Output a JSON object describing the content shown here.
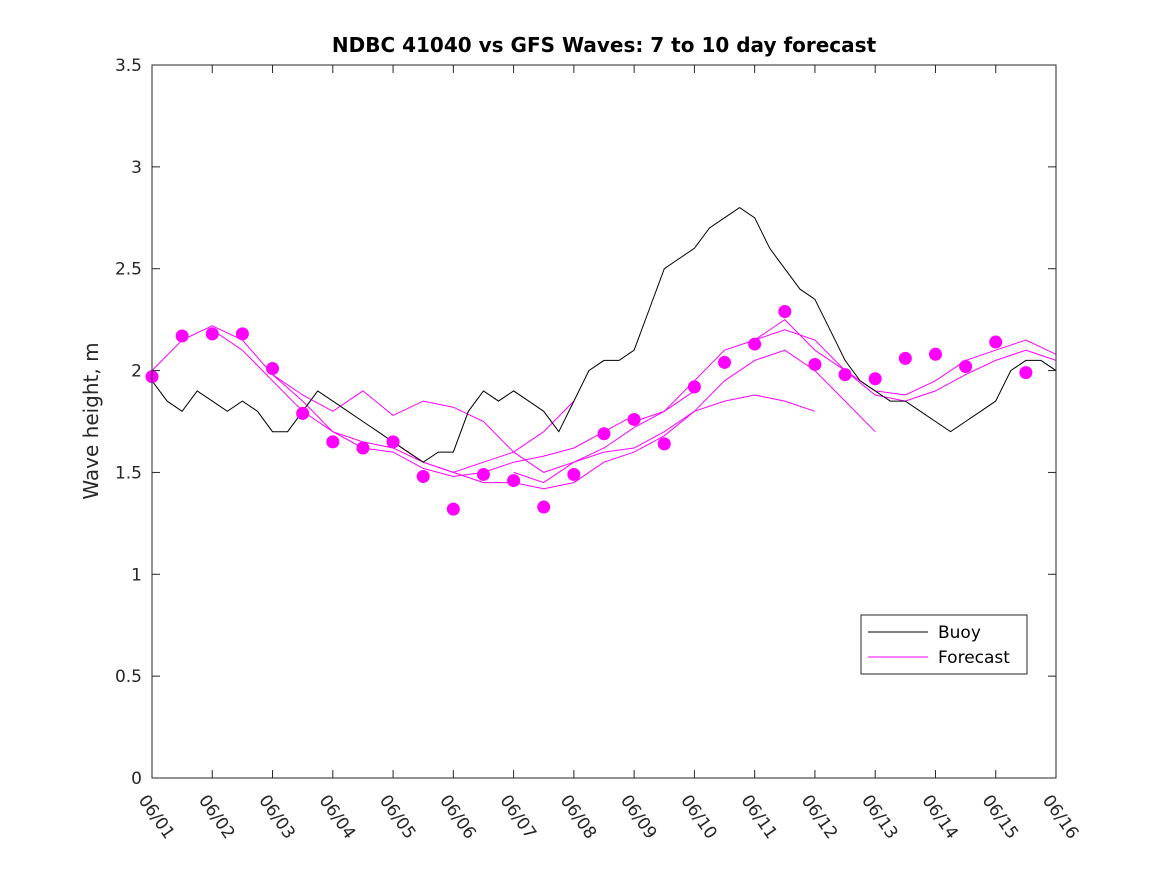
{
  "chart_data": {
    "type": "line",
    "title": "NDBC 41040 vs GFS Waves: 7 to 10 day forecast",
    "xlabel": "",
    "ylabel": "Wave height, m",
    "xlim": [
      "06/01",
      "06/16"
    ],
    "ylim": [
      0,
      3.5
    ],
    "x_ticks": [
      "06/01",
      "06/02",
      "06/03",
      "06/04",
      "06/05",
      "06/06",
      "06/07",
      "06/08",
      "06/09",
      "06/10",
      "06/11",
      "06/12",
      "06/13",
      "06/14",
      "06/15",
      "06/16"
    ],
    "y_ticks": [
      "0",
      "0.5",
      "1",
      "1.5",
      "2",
      "2.5",
      "3",
      "3.5"
    ],
    "grid": false,
    "legend": {
      "position": "bottom-right",
      "entries": [
        "Buoy",
        "Forecast"
      ]
    },
    "colors": {
      "buoy": "#000000",
      "forecast": "#ff00ff"
    },
    "series": [
      {
        "name": "Buoy",
        "x_day_of_june": [
          1.0,
          1.25,
          1.5,
          1.75,
          2.0,
          2.25,
          2.5,
          2.75,
          3.0,
          3.25,
          3.5,
          3.75,
          4.0,
          4.25,
          4.5,
          4.75,
          5.0,
          5.25,
          5.5,
          5.75,
          6.0,
          6.25,
          6.5,
          6.75,
          7.0,
          7.25,
          7.5,
          7.75,
          8.0,
          8.25,
          8.5,
          8.75,
          9.0,
          9.25,
          9.5,
          9.75,
          10.0,
          10.25,
          10.5,
          10.75,
          11.0,
          11.25,
          11.5,
          11.75,
          12.0,
          12.25,
          12.5,
          12.75,
          13.0,
          13.25,
          13.5,
          13.75,
          14.0,
          14.25,
          14.5,
          14.75,
          15.0,
          15.25,
          15.5,
          15.75,
          16.0
        ],
        "values": [
          1.95,
          1.85,
          1.8,
          1.9,
          1.85,
          1.8,
          1.85,
          1.8,
          1.7,
          1.7,
          1.8,
          1.9,
          1.85,
          1.8,
          1.75,
          1.7,
          1.65,
          1.6,
          1.55,
          1.6,
          1.6,
          1.8,
          1.9,
          1.85,
          1.9,
          1.85,
          1.8,
          1.7,
          1.85,
          2.0,
          2.05,
          2.05,
          2.1,
          2.3,
          2.5,
          2.55,
          2.6,
          2.7,
          2.75,
          2.8,
          2.75,
          2.6,
          2.5,
          2.4,
          2.35,
          2.2,
          2.05,
          1.95,
          1.9,
          1.85,
          1.85,
          1.8,
          1.75,
          1.7,
          1.75,
          1.8,
          1.85,
          2.0,
          2.05,
          2.05,
          2.0
        ]
      },
      {
        "name": "Forecast",
        "markers": [
          [
            1.0,
            1.97
          ],
          [
            1.5,
            2.17
          ],
          [
            2.0,
            2.18
          ],
          [
            2.5,
            2.18
          ],
          [
            3.0,
            2.01
          ],
          [
            3.5,
            1.79
          ],
          [
            4.0,
            1.65
          ],
          [
            4.5,
            1.62
          ],
          [
            5.0,
            1.65
          ],
          [
            5.5,
            1.48
          ],
          [
            6.0,
            1.32
          ],
          [
            6.5,
            1.49
          ],
          [
            7.0,
            1.46
          ],
          [
            7.5,
            1.33
          ],
          [
            8.0,
            1.49
          ],
          [
            8.5,
            1.69
          ],
          [
            9.0,
            1.76
          ],
          [
            9.5,
            1.64
          ],
          [
            10.0,
            1.92
          ],
          [
            10.5,
            2.04
          ],
          [
            11.0,
            2.13
          ],
          [
            11.5,
            2.29
          ],
          [
            12.0,
            2.03
          ],
          [
            12.5,
            1.98
          ],
          [
            13.0,
            1.96
          ],
          [
            13.5,
            2.06
          ],
          [
            14.0,
            2.08
          ],
          [
            14.5,
            2.02
          ],
          [
            15.0,
            2.14
          ],
          [
            15.5,
            1.99
          ]
        ],
        "lines": [
          {
            "x": [
              1.0,
              1.5,
              2.0,
              2.5,
              3.0,
              3.5,
              4.0,
              4.5,
              5.0,
              5.5,
              6.0,
              6.5,
              7.0,
              7.5,
              8.0
            ],
            "values": [
              2.0,
              2.15,
              2.22,
              2.15,
              1.98,
              1.85,
              1.7,
              1.65,
              1.62,
              1.55,
              1.5,
              1.55,
              1.6,
              1.7,
              1.85
            ]
          },
          {
            "x": [
              2.0,
              2.5,
              3.0,
              3.5,
              4.0,
              4.5,
              5.0,
              5.5,
              6.0,
              6.5,
              7.0,
              7.5,
              8.0,
              8.5,
              9.0
            ],
            "values": [
              2.2,
              2.1,
              1.95,
              1.8,
              1.7,
              1.62,
              1.6,
              1.52,
              1.48,
              1.5,
              1.55,
              1.58,
              1.62,
              1.7,
              1.78
            ]
          },
          {
            "x": [
              3.0,
              3.5,
              4.0,
              4.5,
              5.0,
              5.5,
              6.0,
              6.5,
              7.0,
              7.5,
              8.0,
              8.5,
              9.0,
              9.5,
              10.0
            ],
            "values": [
              1.98,
              1.88,
              1.8,
              1.9,
              1.78,
              1.85,
              1.82,
              1.75,
              1.6,
              1.5,
              1.55,
              1.62,
              1.72,
              1.8,
              1.9
            ]
          },
          {
            "x": [
              5.0,
              5.5,
              6.0,
              6.5,
              7.0,
              7.5,
              8.0,
              8.5,
              9.0,
              9.5,
              10.0,
              10.5,
              11.0,
              11.5,
              12.0
            ],
            "values": [
              1.65,
              1.55,
              1.5,
              1.45,
              1.45,
              1.42,
              1.45,
              1.55,
              1.6,
              1.68,
              1.8,
              1.85,
              1.88,
              1.85,
              1.8
            ]
          },
          {
            "x": [
              7.0,
              7.5,
              8.0,
              8.5,
              9.0,
              9.5,
              10.0,
              10.5,
              11.0,
              11.5,
              12.0,
              12.5,
              13.0
            ],
            "values": [
              1.5,
              1.45,
              1.55,
              1.6,
              1.62,
              1.7,
              1.8,
              1.95,
              2.05,
              2.1,
              2.0,
              1.85,
              1.7
            ]
          },
          {
            "x": [
              9.0,
              9.5,
              10.0,
              10.5,
              11.0,
              11.5,
              12.0,
              12.5,
              13.0,
              13.5,
              14.0,
              14.5,
              15.0,
              15.5,
              16.0
            ],
            "values": [
              1.75,
              1.8,
              1.95,
              2.1,
              2.15,
              2.2,
              2.15,
              2.0,
              1.88,
              1.85,
              1.9,
              1.98,
              2.05,
              2.1,
              2.05
            ]
          },
          {
            "x": [
              11.0,
              11.5,
              12.0,
              12.5,
              13.0,
              13.5,
              14.0,
              14.5,
              15.0,
              15.5,
              16.0
            ],
            "values": [
              2.15,
              2.25,
              2.1,
              2.0,
              1.9,
              1.88,
              1.95,
              2.05,
              2.1,
              2.15,
              2.08
            ]
          }
        ]
      }
    ]
  }
}
